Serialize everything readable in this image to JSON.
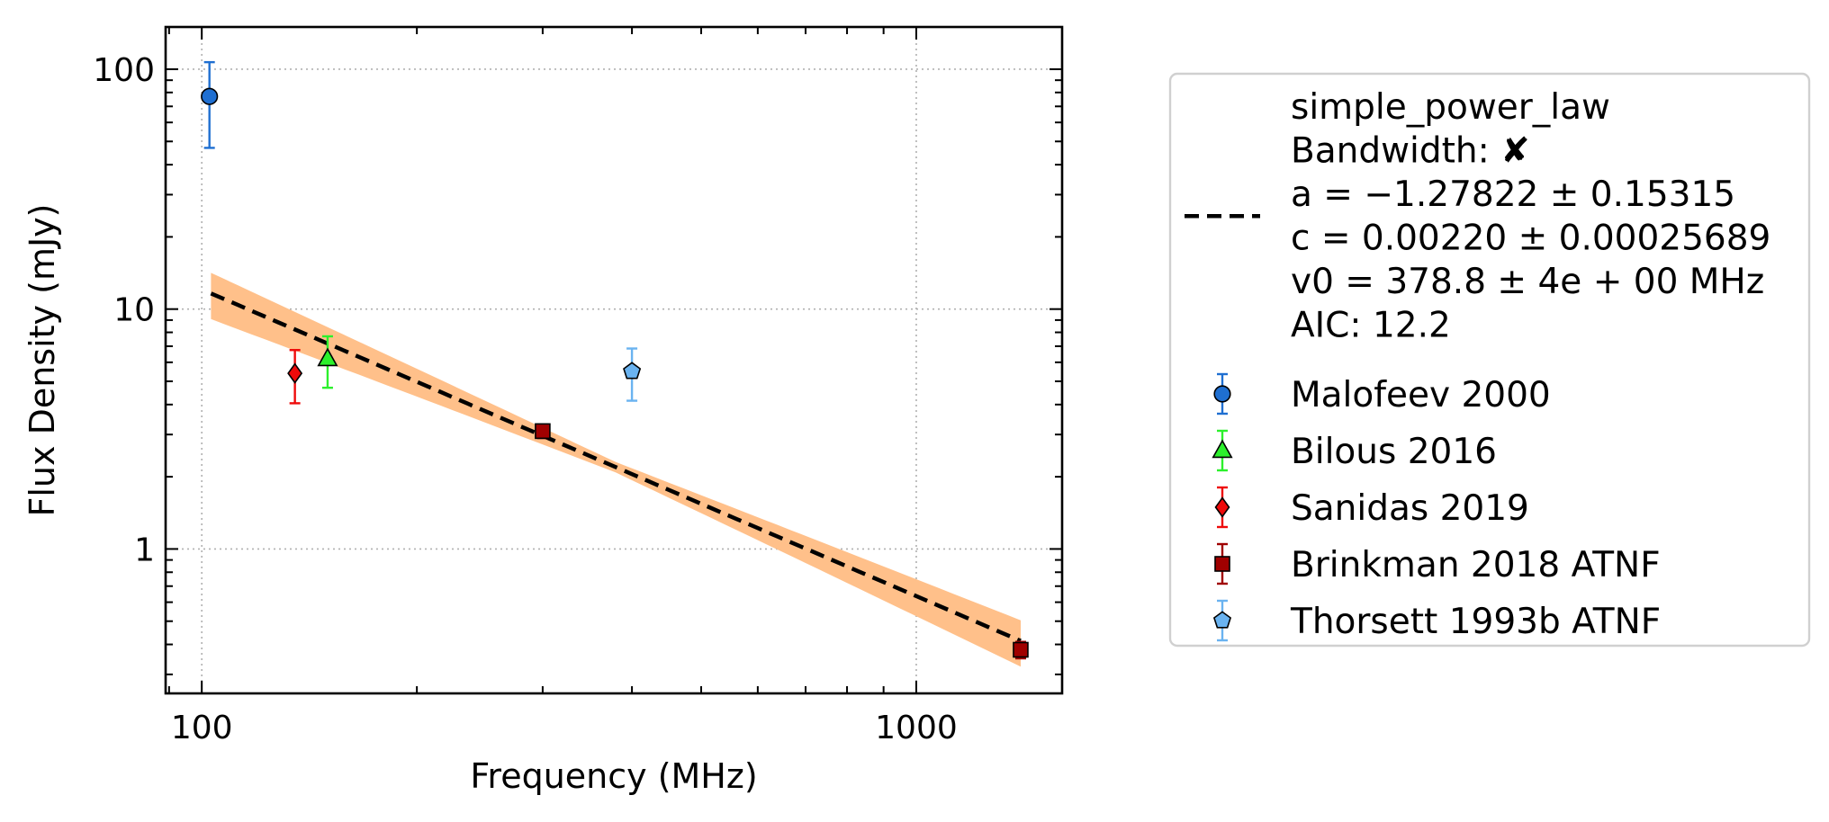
{
  "chart_data": {
    "type": "scatter",
    "title": "",
    "xlabel": "Frequency (MHz)",
    "ylabel": "Flux Density (mJy)",
    "xscale": "log",
    "yscale": "log",
    "xlim": [
      89,
      1600
    ],
    "ylim": [
      0.25,
      150
    ],
    "xticks": [
      {
        "value": 100,
        "label": "100"
      },
      {
        "value": 1000,
        "label": "1000"
      }
    ],
    "yticks": [
      {
        "value": 1,
        "label": "1"
      },
      {
        "value": 10,
        "label": "10"
      },
      {
        "value": 100,
        "label": "100"
      }
    ],
    "grid": true,
    "legend_position": "outside-right",
    "fit": {
      "model": "simple_power_law",
      "style": "dashed",
      "color": "#000000",
      "band_color": "#ffc08a",
      "a": -1.27822,
      "c": 0.0022,
      "v0": 378.8,
      "x_range": [
        103,
        1400
      ],
      "band_relative": [
        0.24,
        0.22
      ],
      "legend_lines": [
        "simple_power_law",
        "Bandwidth: ✘",
        "a = −1.27822 ± 0.15315",
        "c = 0.00220 ± 0.00025689",
        "v0 = 378.8 ± 4e + 00 MHz",
        "AIC: 12.2"
      ]
    },
    "series": [
      {
        "name": "Malofeev 2000",
        "marker": "circle",
        "color": "#1f6fd1",
        "points": [
          {
            "x": 102.5,
            "y": 77,
            "ylow": 47,
            "yhigh": 107
          }
        ]
      },
      {
        "name": "Bilous 2016",
        "marker": "triangle",
        "color": "#2cf02c",
        "points": [
          {
            "x": 150,
            "y": 6.2,
            "ylow": 4.7,
            "yhigh": 7.7
          }
        ]
      },
      {
        "name": "Sanidas 2019",
        "marker": "diamond",
        "color": "#ee0a0a",
        "points": [
          {
            "x": 135,
            "y": 5.4,
            "ylow": 4.05,
            "yhigh": 6.75
          }
        ]
      },
      {
        "name": "Brinkman 2018 ATNF",
        "marker": "square",
        "color": "#a00000",
        "points": [
          {
            "x": 300,
            "y": 3.1,
            "ylow": 2.9,
            "yhigh": 3.3
          },
          {
            "x": 1400,
            "y": 0.38,
            "ylow": 0.35,
            "yhigh": 0.41
          }
        ]
      },
      {
        "name": "Thorsett 1993b ATNF",
        "marker": "pentagon",
        "color": "#6ab3f0",
        "points": [
          {
            "x": 400,
            "y": 5.5,
            "ylow": 4.15,
            "yhigh": 6.85
          }
        ]
      }
    ]
  }
}
